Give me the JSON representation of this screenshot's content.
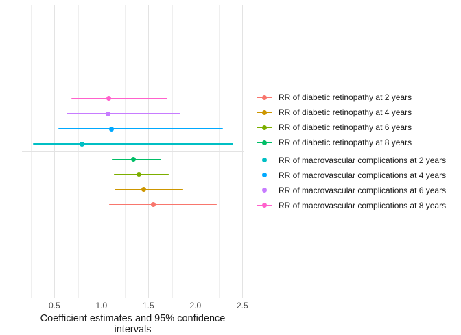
{
  "chart_data": {
    "type": "scatter",
    "subtype": "forest-pointrange",
    "orientation": "horizontal",
    "title": "",
    "xlabel": "Coefficient estimates and 95% confidence intervals",
    "ylabel": "",
    "xlim": [
      0.16,
      2.51
    ],
    "x_ticks": [
      0.5,
      1.0,
      1.5,
      2.0,
      2.5
    ],
    "x_tick_labels": [
      "0.5",
      "1.0",
      "1.5",
      "2.0",
      "2.5"
    ],
    "x_minor_ticks": [
      0.25,
      0.75,
      1.25,
      1.75,
      2.25
    ],
    "grid": {
      "vertical_major": true,
      "vertical_minor": true,
      "horizontal_separator_between_groups": true,
      "major_color": "#e3e3e3",
      "minor_color": "#efefef"
    },
    "legend_position": "right",
    "legend_title": "",
    "series": [
      {
        "label": "RR of diabetic retinopathy at 2 years",
        "color": "#F8766D",
        "estimate": 1.55,
        "ci_low": 1.08,
        "ci_high": 2.23
      },
      {
        "label": "RR of diabetic retinopathy at 4 years",
        "color": "#CD9600",
        "estimate": 1.45,
        "ci_low": 1.14,
        "ci_high": 1.87
      },
      {
        "label": "RR of diabetic retinopathy at 6 years",
        "color": "#7CAE00",
        "estimate": 1.4,
        "ci_low": 1.13,
        "ci_high": 1.72
      },
      {
        "label": "RR of diabetic retinopathy at 8 years",
        "color": "#00BE67",
        "estimate": 1.34,
        "ci_low": 1.11,
        "ci_high": 1.64
      },
      {
        "label": "RR of macrovascular complications at 2 years",
        "color": "#00BFC4",
        "estimate": 0.79,
        "ci_low": 0.27,
        "ci_high": 2.4
      },
      {
        "label": "RR of macrovascular complications at 4 years",
        "color": "#00A9FF",
        "estimate": 1.11,
        "ci_low": 0.54,
        "ci_high": 2.29
      },
      {
        "label": "RR of macrovascular complications at 6 years",
        "color": "#C77CFF",
        "estimate": 1.07,
        "ci_low": 0.63,
        "ci_high": 1.84
      },
      {
        "label": "RR of macrovascular complications at 8 years",
        "color": "#FF61CC",
        "estimate": 1.08,
        "ci_low": 0.68,
        "ci_high": 1.7
      }
    ],
    "row_order_top_to_bottom": [
      "RR of macrovascular complications at 8 years",
      "RR of macrovascular complications at 6 years",
      "RR of macrovascular complications at 4 years",
      "RR of macrovascular complications at 2 years",
      "RR of diabetic retinopathy at 8 years",
      "RR of diabetic retinopathy at 6 years",
      "RR of diabetic retinopathy at 4 years",
      "RR of diabetic retinopathy at 2 years"
    ],
    "text_colors": {
      "tick_labels": "#4d4d4d",
      "axis_title": "#1a1a1a",
      "legend_text": "#1a1a1a"
    },
    "background": "#ffffff"
  }
}
